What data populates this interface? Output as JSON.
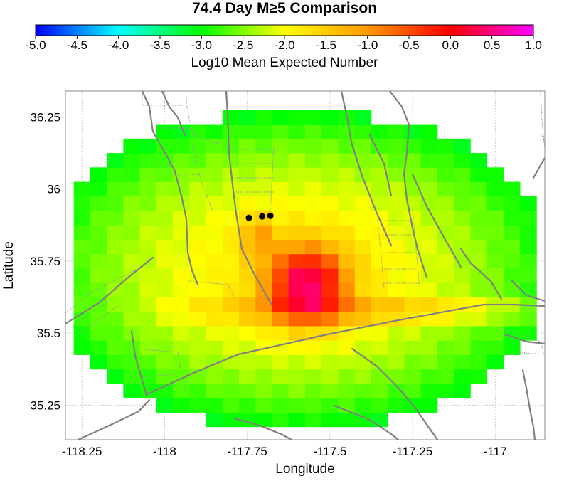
{
  "chart_data": {
    "type": "heatmap",
    "title": "74.4 Day M≥5 Comparison",
    "xlabel": "Longitude",
    "ylabel": "Latitude",
    "colorbar": {
      "label": "Log10 Mean Expected Number",
      "range": [
        -5.0,
        1.0
      ],
      "ticks": [
        "-5.0",
        "-4.5",
        "-4.0",
        "-3.5",
        "-3.0",
        "-2.5",
        "-2.0",
        "-1.5",
        "-1.0",
        "-0.5",
        "0.0",
        "0.5",
        "1.0"
      ],
      "colormap": [
        "#0000ff",
        "#00ffff",
        "#00ff00",
        "#ffff00",
        "#ff9900",
        "#ff0000",
        "#ff00ff"
      ]
    },
    "xlim": [
      -118.3,
      -116.85
    ],
    "ylim": [
      35.13,
      36.34
    ],
    "x_ticks": [
      -118.25,
      -118.0,
      -117.75,
      -117.5,
      -117.25,
      -117.0
    ],
    "x_tick_labels": [
      "-118.25",
      "-118",
      "-117.75",
      "-117.5",
      "-117.25",
      "-117"
    ],
    "y_ticks": [
      35.25,
      35.5,
      35.75,
      36.0,
      36.25
    ],
    "y_tick_labels": [
      "35.25",
      "35.5",
      "35.75",
      "36",
      "36.25"
    ],
    "grid": true,
    "cell_size_deg": 0.05,
    "grid_center": [
      -117.6,
      35.65
    ],
    "events": [
      {
        "lon": -117.745,
        "lat": 35.9
      },
      {
        "lon": -117.705,
        "lat": 35.905
      },
      {
        "lon": -117.68,
        "lat": 35.907
      }
    ]
  }
}
